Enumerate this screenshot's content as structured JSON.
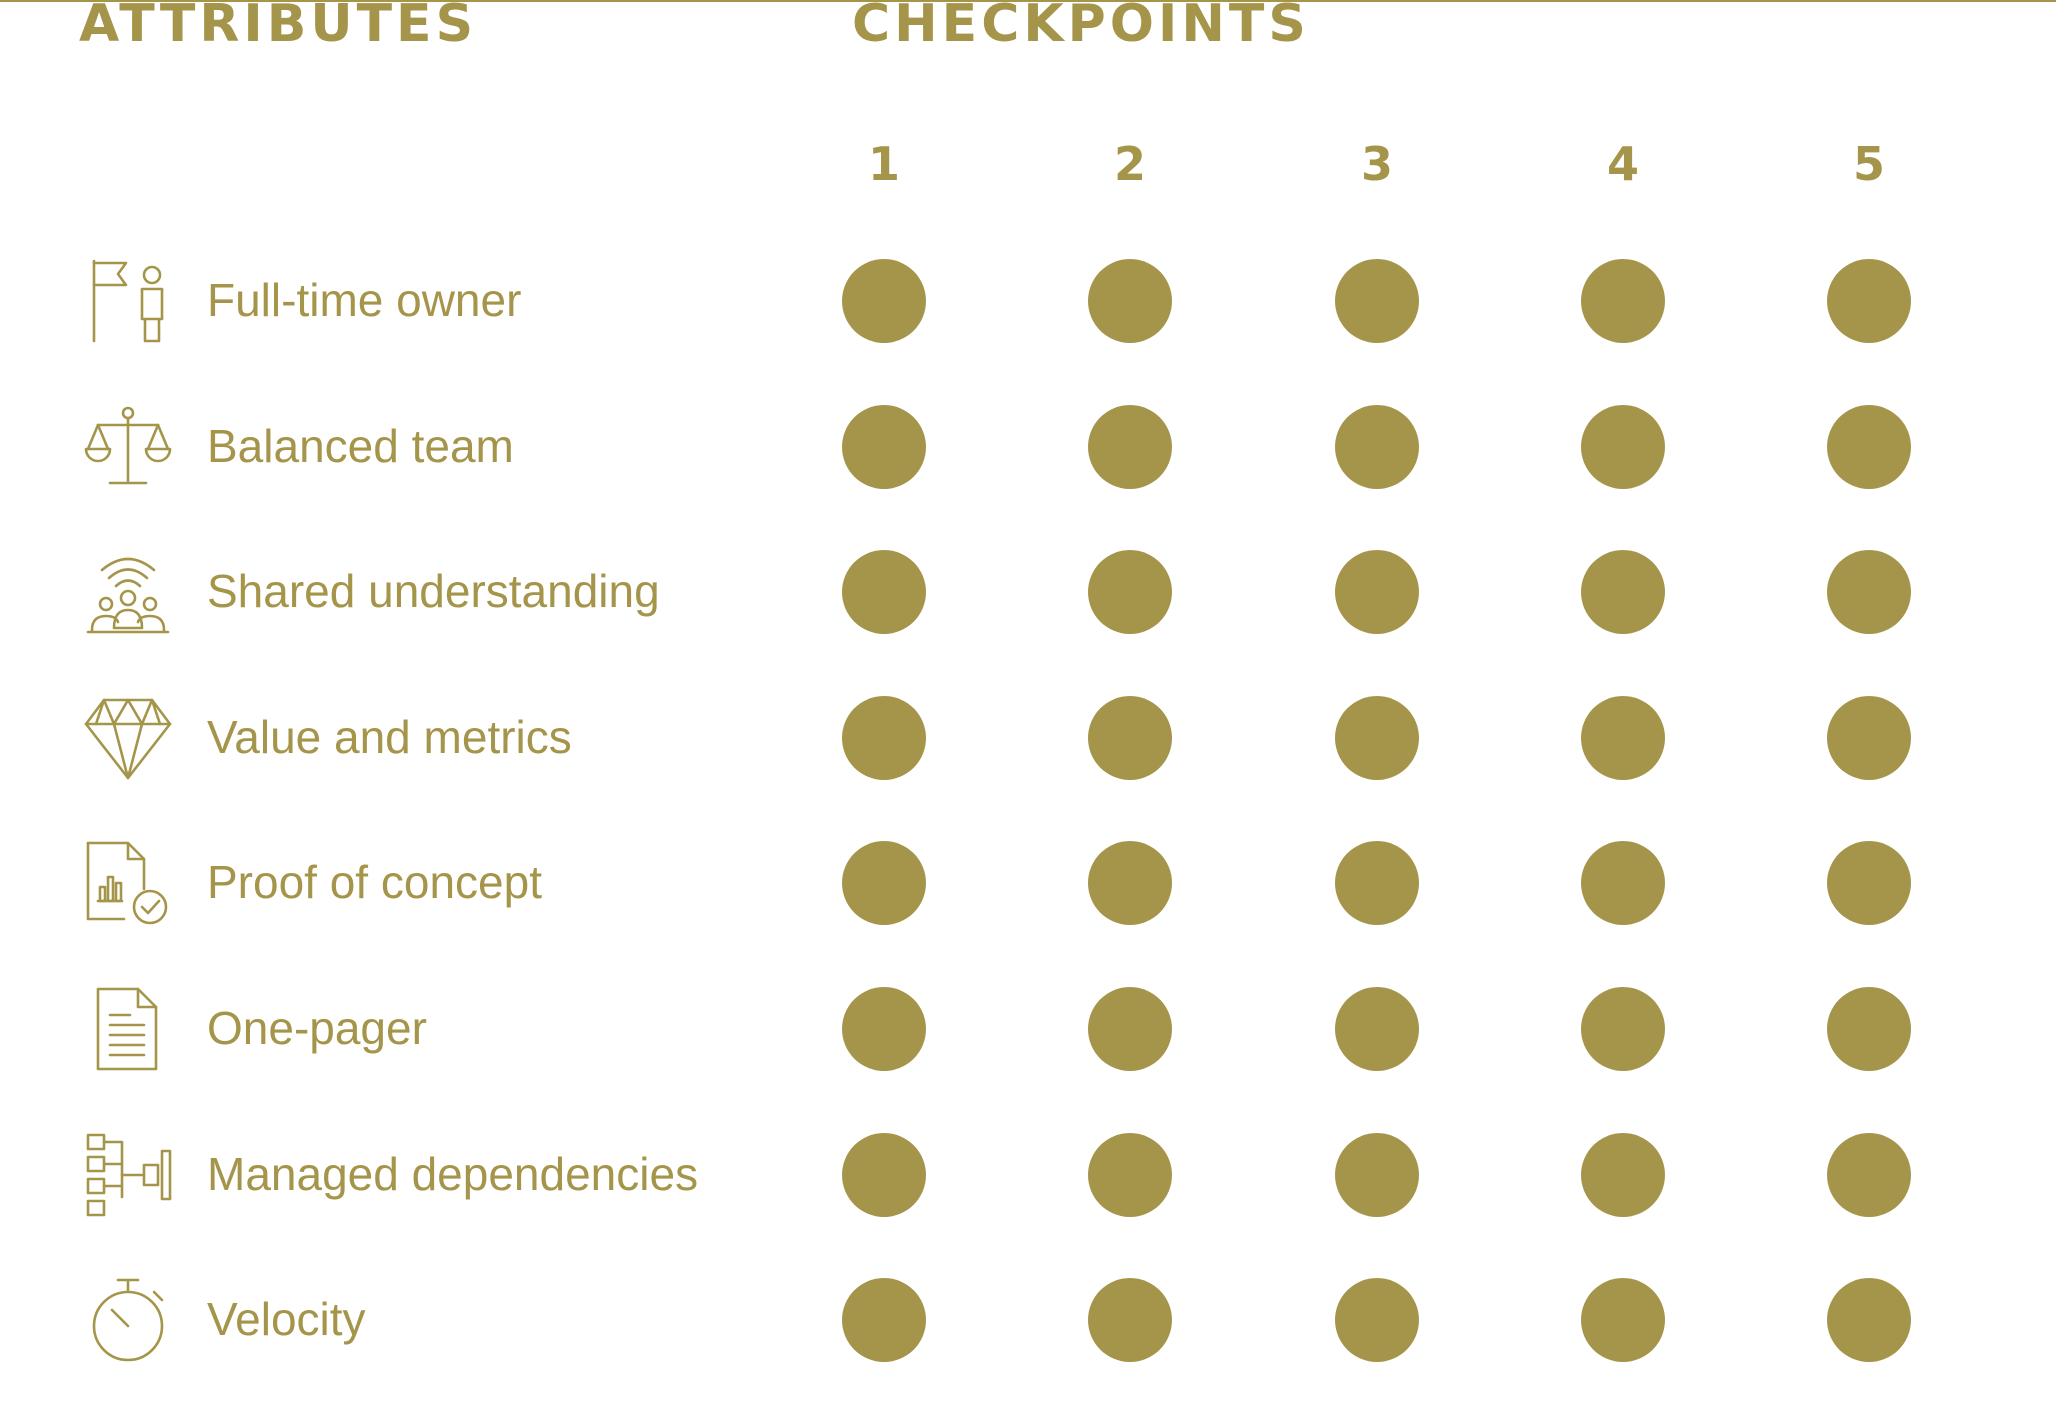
{
  "colors": {
    "accent": "#a5954a",
    "background": "#ffffff"
  },
  "headers": {
    "attributes": "ATTRIBUTES",
    "checkpoints": "CHECKPOINTS"
  },
  "checkpoints": [
    "1",
    "2",
    "3",
    "4",
    "5"
  ],
  "attributes": [
    {
      "label": "Full-time owner",
      "icon": "flag-person-icon",
      "checkpoints_marked": [
        true,
        true,
        true,
        true,
        true
      ]
    },
    {
      "label": "Balanced team",
      "icon": "balance-scale-icon",
      "checkpoints_marked": [
        true,
        true,
        true,
        true,
        true
      ]
    },
    {
      "label": "Shared understanding",
      "icon": "group-signal-icon",
      "checkpoints_marked": [
        true,
        true,
        true,
        true,
        true
      ]
    },
    {
      "label": "Value and metrics",
      "icon": "diamond-icon",
      "checkpoints_marked": [
        true,
        true,
        true,
        true,
        true
      ]
    },
    {
      "label": "Proof of concept",
      "icon": "chart-document-check-icon",
      "checkpoints_marked": [
        true,
        true,
        true,
        true,
        true
      ]
    },
    {
      "label": "One-pager",
      "icon": "document-icon",
      "checkpoints_marked": [
        true,
        true,
        true,
        true,
        true
      ]
    },
    {
      "label": "Managed dependencies",
      "icon": "dependency-tree-icon",
      "checkpoints_marked": [
        true,
        true,
        true,
        true,
        true
      ]
    },
    {
      "label": "Velocity",
      "icon": "stopwatch-icon",
      "checkpoints_marked": [
        true,
        true,
        true,
        true,
        true
      ]
    }
  ]
}
